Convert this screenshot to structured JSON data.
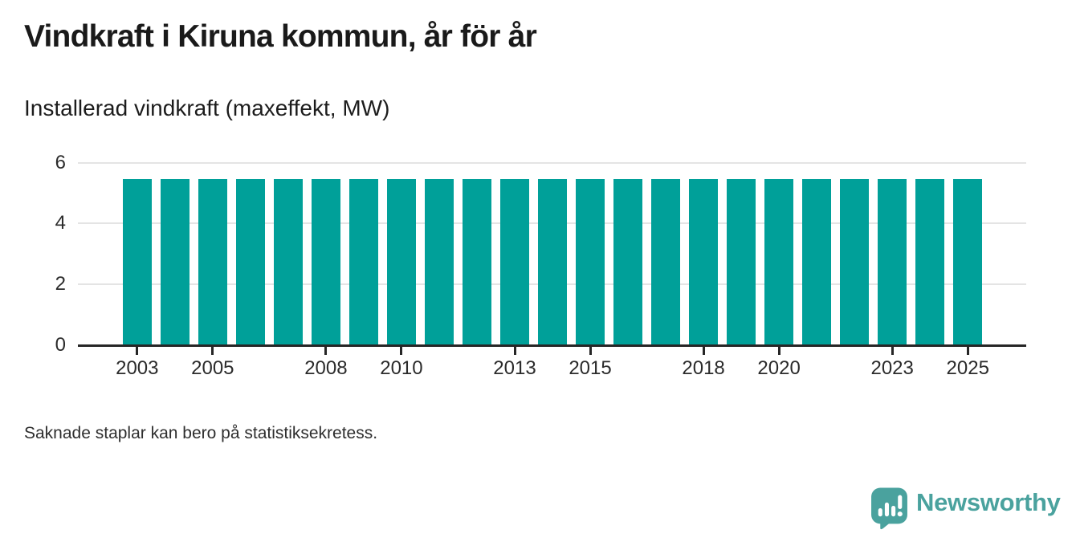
{
  "header": {
    "title": "Vindkraft i Kiruna kommun, år för år",
    "subtitle": "Installerad vindkraft (maxeffekt, MW)"
  },
  "footer": {
    "note": "Saknade staplar kan bero på statistiksekretess.",
    "brand": {
      "name": "Newsworthy",
      "icon": "speech-bubble-bar-chart-icon",
      "color": "#4aa29e"
    }
  },
  "chart_data": {
    "type": "bar",
    "title": "Vindkraft i Kiruna kommun, år för år",
    "subtitle": "Installerad vindkraft (maxeffekt, MW)",
    "xlabel": "",
    "ylabel": "Installerad vindkraft (maxeffekt, MW)",
    "unit": "MW",
    "categories": [
      2003,
      2004,
      2005,
      2006,
      2007,
      2008,
      2009,
      2010,
      2011,
      2012,
      2013,
      2014,
      2015,
      2016,
      2017,
      2018,
      2019,
      2020,
      2021,
      2022,
      2023,
      2024,
      2025
    ],
    "values": [
      5.45,
      5.45,
      5.45,
      5.45,
      5.45,
      5.45,
      5.45,
      5.45,
      5.45,
      5.45,
      5.45,
      5.45,
      5.45,
      5.45,
      5.45,
      5.45,
      5.45,
      5.45,
      5.45,
      5.45,
      5.45,
      5.45,
      5.45
    ],
    "ylim": [
      0,
      6
    ],
    "yticks": [
      0,
      2,
      4,
      6
    ],
    "xtick_labels": [
      2003,
      2005,
      2008,
      2010,
      2013,
      2015,
      2018,
      2020,
      2023,
      2025
    ],
    "grid": "horizontal-gridlines-on",
    "legend": "none",
    "bar_color": "#00a099",
    "axis_color": "#262626",
    "gridline_color": "#e4e4e4"
  }
}
